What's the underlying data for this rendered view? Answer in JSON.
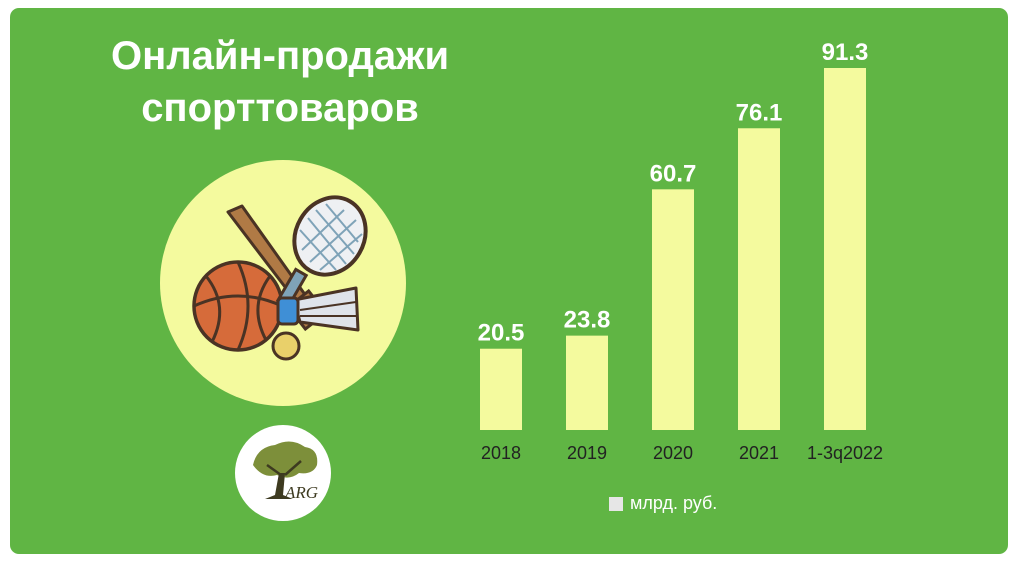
{
  "title_lines": [
    "Онлайн-продажи",
    "спорттоваров"
  ],
  "logo_text": "ARG",
  "legend_label": "млрд. руб.",
  "colors": {
    "background": "#60b544",
    "bar": "#f4fa9e",
    "label": "#ffffff",
    "tick": "#222222",
    "legend_swatch": "#e6e6e6"
  },
  "icons": [
    "basketball-icon",
    "baseball-bat-icon",
    "tennis-racket-icon",
    "shuttlecock-icon",
    "tennis-ball-icon",
    "tree-logo-icon"
  ],
  "chart_data": {
    "type": "bar",
    "categories": [
      "2018",
      "2019",
      "2020",
      "2021",
      "1-3q2022"
    ],
    "series": [
      {
        "name": "млрд. руб.",
        "values": [
          20.5,
          23.8,
          60.7,
          76.1,
          91.3
        ]
      }
    ],
    "data_labels": [
      "20.5",
      "23.8",
      "60.7",
      "76.1",
      "91.3"
    ],
    "ylim": [
      0,
      100
    ],
    "grid": false,
    "legend_position": "bottom"
  }
}
